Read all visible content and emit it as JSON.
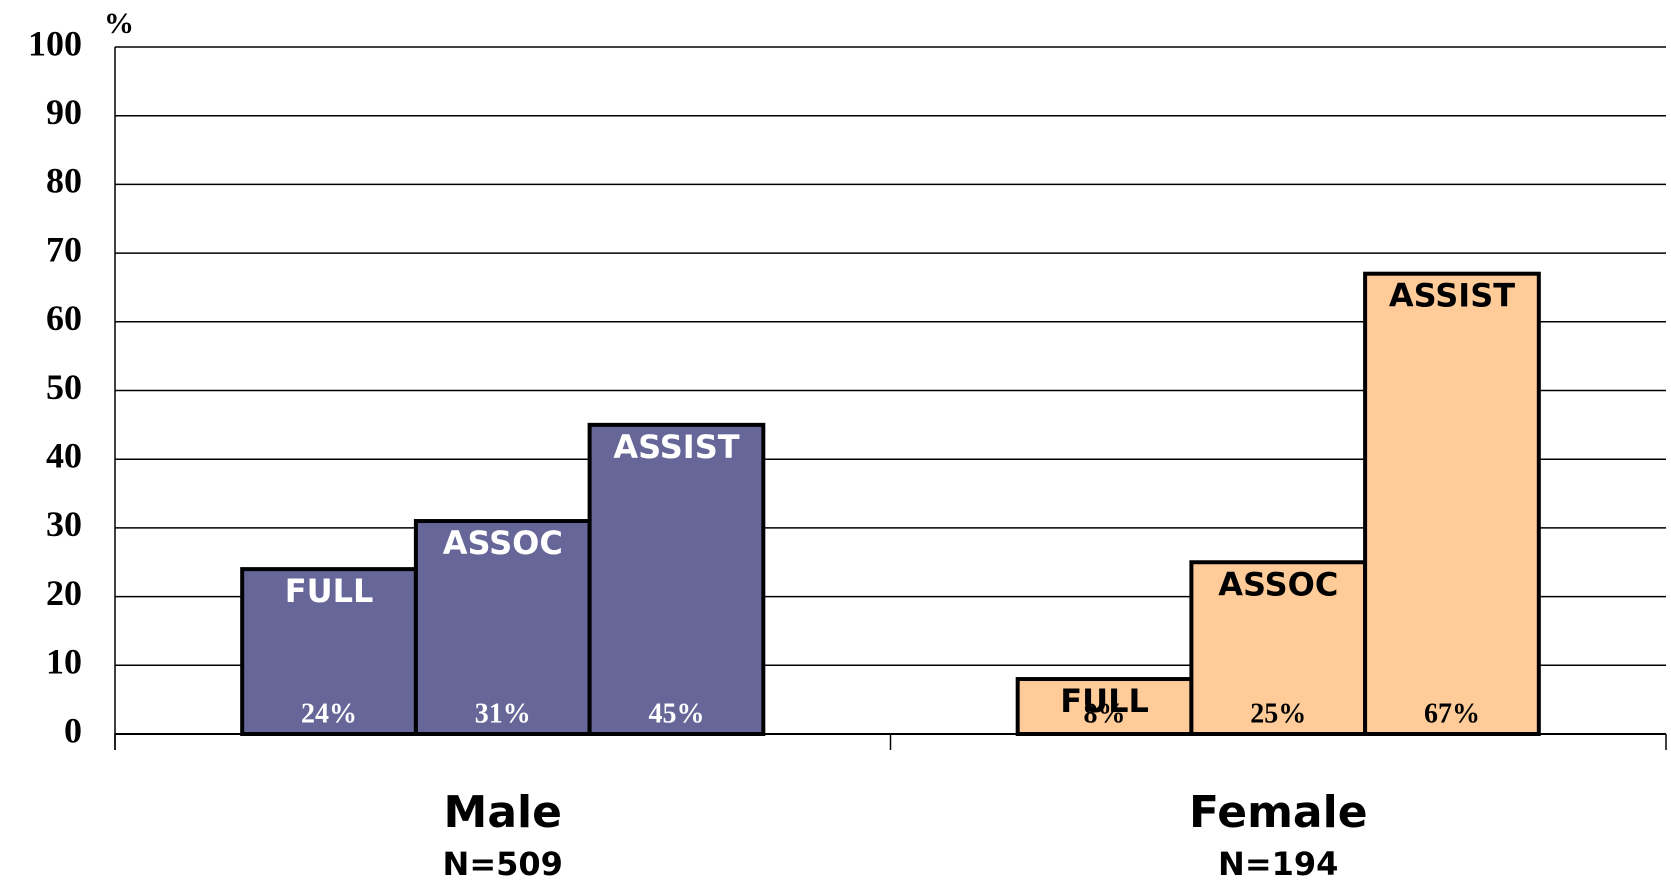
{
  "chart_data": {
    "type": "bar",
    "y_label": "%",
    "categories": [
      "Male",
      "Female"
    ],
    "category_notes": [
      "N=509",
      "N=194"
    ],
    "group_colors": [
      "#666699",
      "#ffcc99"
    ],
    "label_colors": [
      "#ffffff",
      "#000000"
    ],
    "series": [
      {
        "name": "FULL",
        "values": [
          24,
          8
        ],
        "value_labels": [
          "24%",
          "8%"
        ]
      },
      {
        "name": "ASSOC",
        "values": [
          31,
          25
        ],
        "value_labels": [
          "31%",
          "25%"
        ]
      },
      {
        "name": "ASSIST",
        "values": [
          45,
          67
        ],
        "value_labels": [
          "45%",
          "67%"
        ]
      }
    ],
    "ylim": [
      0,
      100
    ],
    "yticks": [
      0,
      10,
      20,
      30,
      40,
      50,
      60,
      70,
      80,
      90,
      100
    ],
    "grid": true
  }
}
